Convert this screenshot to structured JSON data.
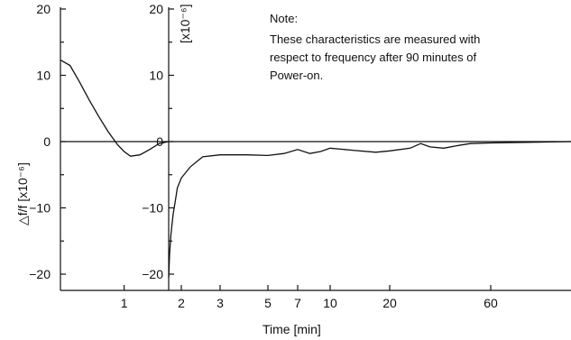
{
  "chart_data": {
    "type": "line",
    "xlabel": "Time  [min]",
    "ylabel_left": "△f/f  [x10⁻⁶]",
    "ylabel_right": "[x10⁻⁶]",
    "note": {
      "title": "Note:",
      "lines": [
        "These characteristics are measured with",
        "respect to frequency after 90 minutes of",
        "Power-on."
      ]
    },
    "left_panel": {
      "x_ticks": [
        "1"
      ],
      "y_ticks": [
        "20",
        "10",
        "0",
        "−10",
        "−20"
      ],
      "ylim": [
        -22,
        20
      ],
      "series": [
        {
          "x": [
            0.0,
            0.15,
            0.3,
            0.45,
            0.6,
            0.75,
            0.9,
            1.0,
            1.1,
            1.25,
            1.4,
            1.55,
            1.7
          ],
          "y": [
            12.3,
            11.5,
            9.0,
            6.3,
            3.8,
            1.5,
            -0.5,
            -1.5,
            -2.2,
            -2.0,
            -1.2,
            -0.3,
            0.0
          ]
        }
      ]
    },
    "right_panel": {
      "x_ticks": [
        "2",
        "3",
        "5",
        "7",
        "10",
        "20",
        "60"
      ],
      "y_ticks": [
        "20",
        "10",
        "0",
        "−10",
        "−20"
      ],
      "ylim": [
        -22,
        20
      ],
      "series": [
        {
          "x": [
            1.7,
            1.72,
            1.75,
            1.8,
            1.85,
            1.9,
            2.0,
            2.2,
            2.5,
            3,
            4,
            5,
            6,
            7,
            8,
            9,
            10,
            13,
            17,
            20,
            25,
            28,
            31,
            36,
            42,
            48,
            60,
            90,
            130
          ],
          "y": [
            -20.5,
            -17,
            -14,
            -11,
            -9,
            -7,
            -5.5,
            -3.8,
            -2.3,
            -2.0,
            -2.0,
            -2.1,
            -1.8,
            -1.2,
            -1.8,
            -1.5,
            -1.0,
            -1.3,
            -1.6,
            -1.4,
            -1.0,
            -0.3,
            -0.8,
            -1.0,
            -0.6,
            -0.3,
            -0.2,
            -0.1,
            0.0
          ]
        }
      ]
    }
  }
}
